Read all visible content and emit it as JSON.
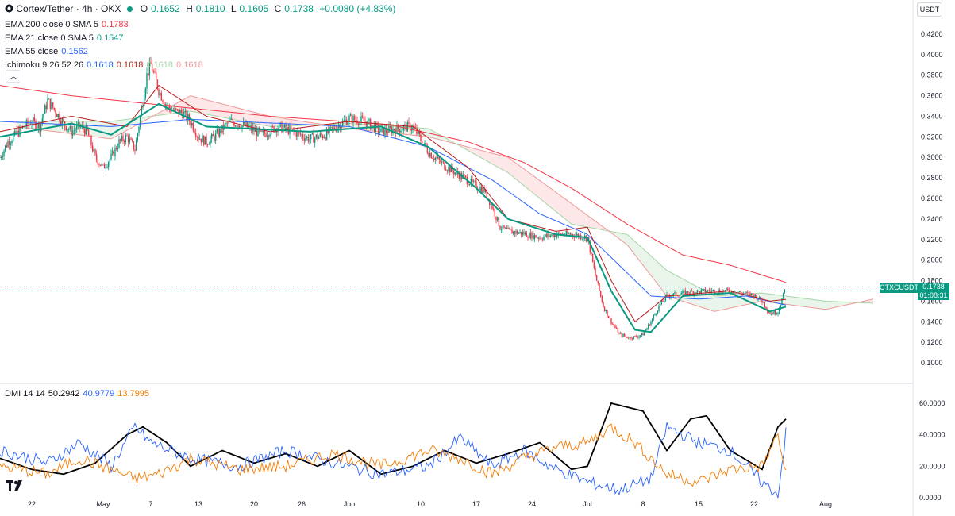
{
  "header": {
    "symbol": "Cortex/Tether · 4h · OKX",
    "open_label": "O",
    "open": "0.1652",
    "high_label": "H",
    "high": "0.1810",
    "low_label": "L",
    "low": "0.1605",
    "close_label": "C",
    "close": "0.1738",
    "change": "+0.0080 (+4.83%)"
  },
  "indicators": {
    "ema200": {
      "label": "EMA 200 close 0 SMA 5",
      "value": "0.1783",
      "color": "#f23645"
    },
    "ema21": {
      "label": "EMA 21 close 0 SMA 5",
      "value": "0.1547",
      "color": "#089981"
    },
    "ema55": {
      "label": "EMA 55 close",
      "value": "0.1562",
      "color": "#2962ff"
    },
    "ichimoku": {
      "label": "Ichimoku 9 26 52 26",
      "v1": "0.1618",
      "v2": "0.1618",
      "v3": "0.1618",
      "v4": "0.1618",
      "c1": "#2962ff",
      "c2": "#b71c1c",
      "c3": "#a5d6a7",
      "c4": "#ef9a9a"
    },
    "dmi": {
      "label": "DMI 14 14",
      "adx": "50.2942",
      "plus": "40.9779",
      "minus": "13.7995",
      "adx_color": "#000000",
      "plus_color": "#2962ff",
      "minus_color": "#f57c00"
    }
  },
  "currency_button": "USDT",
  "price_tag": {
    "symbol": "CTXCUSDT",
    "price": "0.1738",
    "countdown": "01:08:31"
  },
  "icons": {
    "collapse": "chevron-up-icon",
    "logo": "tradingview-logo-icon"
  },
  "chart_data": [
    {
      "type": "candlestick",
      "title": "Cortex/Tether · 4h · OKX",
      "ylim": [
        0.09,
        0.43
      ],
      "yticks": [
        0.42,
        0.4,
        0.38,
        0.36,
        0.34,
        0.32,
        0.3,
        0.28,
        0.26,
        0.24,
        0.22,
        0.2,
        0.18,
        0.16,
        0.14,
        0.12,
        0.1
      ],
      "ytick_labels": [
        "0.4200",
        "0.4000",
        "0.3800",
        "0.3600",
        "0.3400",
        "0.3200",
        "0.3000",
        "0.2800",
        "0.2600",
        "0.2400",
        "0.2200",
        "0.2000",
        "0.1800",
        "0.1600",
        "0.1400",
        "0.1200",
        "0.1000"
      ],
      "x_ticks": [
        "22",
        "May",
        "7",
        "13",
        "20",
        "26",
        "Jun",
        "10",
        "17",
        "24",
        "Jul",
        "8",
        "15",
        "22",
        "Aug"
      ],
      "x_tick_days": [
        0,
        9,
        15,
        21,
        28,
        34,
        40,
        49,
        56,
        63,
        70,
        77,
        84,
        91,
        100
      ],
      "x_range_days": [
        -4,
        111
      ],
      "last_price": 0.1738,
      "price_anchors": [
        [
          -4,
          0.3
        ],
        [
          -3,
          0.315
        ],
        [
          -2,
          0.322
        ],
        [
          -1,
          0.33
        ],
        [
          0,
          0.335
        ],
        [
          1,
          0.33
        ],
        [
          2,
          0.355
        ],
        [
          3,
          0.345
        ],
        [
          4,
          0.333
        ],
        [
          5,
          0.325
        ],
        [
          6,
          0.33
        ],
        [
          7,
          0.325
        ],
        [
          8,
          0.3
        ],
        [
          9,
          0.29
        ],
        [
          10,
          0.3
        ],
        [
          11,
          0.315
        ],
        [
          12,
          0.32
        ],
        [
          13,
          0.308
        ],
        [
          14,
          0.355
        ],
        [
          14.5,
          0.38
        ],
        [
          15,
          0.39
        ],
        [
          16,
          0.365
        ],
        [
          17,
          0.35
        ],
        [
          18,
          0.345
        ],
        [
          19,
          0.343
        ],
        [
          20,
          0.335
        ],
        [
          21,
          0.32
        ],
        [
          22,
          0.315
        ],
        [
          23,
          0.32
        ],
        [
          25,
          0.335
        ],
        [
          27,
          0.33
        ],
        [
          29,
          0.322
        ],
        [
          31,
          0.33
        ],
        [
          33,
          0.325
        ],
        [
          35,
          0.318
        ],
        [
          37,
          0.322
        ],
        [
          39,
          0.333
        ],
        [
          40,
          0.338
        ],
        [
          42,
          0.335
        ],
        [
          44,
          0.325
        ],
        [
          46,
          0.328
        ],
        [
          48,
          0.33
        ],
        [
          50,
          0.305
        ],
        [
          52,
          0.292
        ],
        [
          54,
          0.282
        ],
        [
          56,
          0.272
        ],
        [
          57,
          0.268
        ],
        [
          58,
          0.252
        ],
        [
          59,
          0.232
        ],
        [
          60,
          0.228
        ],
        [
          62,
          0.226
        ],
        [
          64,
          0.222
        ],
        [
          66,
          0.225
        ],
        [
          68,
          0.225
        ],
        [
          70,
          0.222
        ],
        [
          71,
          0.185
        ],
        [
          72,
          0.155
        ],
        [
          73,
          0.14
        ],
        [
          74,
          0.128
        ],
        [
          75,
          0.125
        ],
        [
          76,
          0.125
        ],
        [
          77,
          0.128
        ],
        [
          78,
          0.14
        ],
        [
          79,
          0.155
        ],
        [
          80,
          0.165
        ],
        [
          82,
          0.168
        ],
        [
          85,
          0.17
        ],
        [
          88,
          0.17
        ],
        [
          91,
          0.166
        ],
        [
          92,
          0.16
        ],
        [
          93,
          0.148
        ],
        [
          94,
          0.15
        ],
        [
          95,
          0.1738
        ]
      ],
      "ema200_anchors": [
        [
          -4,
          0.37
        ],
        [
          5,
          0.36
        ],
        [
          15,
          0.352
        ],
        [
          30,
          0.34
        ],
        [
          45,
          0.332
        ],
        [
          55,
          0.315
        ],
        [
          62,
          0.295
        ],
        [
          68,
          0.27
        ],
        [
          75,
          0.235
        ],
        [
          82,
          0.205
        ],
        [
          88,
          0.195
        ],
        [
          95,
          0.1783
        ]
      ],
      "ema55_anchors": [
        [
          -4,
          0.335
        ],
        [
          10,
          0.33
        ],
        [
          20,
          0.337
        ],
        [
          40,
          0.33
        ],
        [
          50,
          0.31
        ],
        [
          58,
          0.278
        ],
        [
          64,
          0.245
        ],
        [
          70,
          0.225
        ],
        [
          74,
          0.195
        ],
        [
          78,
          0.165
        ],
        [
          84,
          0.162
        ],
        [
          90,
          0.165
        ],
        [
          95,
          0.1562
        ]
      ],
      "ema21_anchors": [
        [
          -4,
          0.32
        ],
        [
          5,
          0.333
        ],
        [
          10,
          0.322
        ],
        [
          16,
          0.352
        ],
        [
          22,
          0.33
        ],
        [
          35,
          0.325
        ],
        [
          44,
          0.33
        ],
        [
          50,
          0.31
        ],
        [
          56,
          0.27
        ],
        [
          60,
          0.24
        ],
        [
          66,
          0.225
        ],
        [
          70,
          0.222
        ],
        [
          73,
          0.17
        ],
        [
          76,
          0.132
        ],
        [
          78,
          0.13
        ],
        [
          82,
          0.165
        ],
        [
          88,
          0.168
        ],
        [
          93,
          0.15
        ],
        [
          95,
          0.1547
        ]
      ],
      "kijun_anchors": [
        [
          -4,
          0.325
        ],
        [
          5,
          0.34
        ],
        [
          12,
          0.33
        ],
        [
          16,
          0.37
        ],
        [
          22,
          0.34
        ],
        [
          30,
          0.325
        ],
        [
          40,
          0.335
        ],
        [
          48,
          0.33
        ],
        [
          55,
          0.29
        ],
        [
          60,
          0.24
        ],
        [
          66,
          0.228
        ],
        [
          70,
          0.232
        ],
        [
          73,
          0.18
        ],
        [
          76,
          0.14
        ],
        [
          80,
          0.165
        ],
        [
          88,
          0.17
        ],
        [
          93,
          0.16
        ],
        [
          95,
          0.1618
        ]
      ],
      "cloud_a_anchors": [
        [
          -2,
          0.335
        ],
        [
          10,
          0.335
        ],
        [
          20,
          0.345
        ],
        [
          30,
          0.33
        ],
        [
          40,
          0.333
        ],
        [
          50,
          0.328
        ],
        [
          60,
          0.285
        ],
        [
          68,
          0.235
        ],
        [
          75,
          0.225
        ],
        [
          80,
          0.19
        ],
        [
          86,
          0.165
        ],
        [
          92,
          0.168
        ],
        [
          100,
          0.16
        ],
        [
          106,
          0.158
        ]
      ],
      "cloud_b_anchors": [
        [
          -2,
          0.33
        ],
        [
          10,
          0.318
        ],
        [
          20,
          0.36
        ],
        [
          30,
          0.34
        ],
        [
          40,
          0.328
        ],
        [
          50,
          0.32
        ],
        [
          60,
          0.3
        ],
        [
          68,
          0.255
        ],
        [
          75,
          0.215
        ],
        [
          80,
          0.165
        ],
        [
          86,
          0.15
        ],
        [
          92,
          0.16
        ],
        [
          100,
          0.152
        ],
        [
          106,
          0.162
        ]
      ]
    },
    {
      "type": "line",
      "title": "DMI 14 14",
      "ylim": [
        -4,
        64
      ],
      "yticks": [
        0,
        20,
        40,
        60
      ],
      "ytick_labels": [
        "0.0000",
        "20.0000",
        "40.0000",
        "60.0000"
      ],
      "series": [
        {
          "name": "ADX",
          "value": 50.2942,
          "anchors": [
            [
              -4,
              25
            ],
            [
              0,
              18
            ],
            [
              4,
              15
            ],
            [
              8,
              22
            ],
            [
              12,
              40
            ],
            [
              14,
              45
            ],
            [
              17,
              35
            ],
            [
              20,
              20
            ],
            [
              24,
              30
            ],
            [
              28,
              22
            ],
            [
              32,
              28
            ],
            [
              36,
              20
            ],
            [
              40,
              30
            ],
            [
              44,
              15
            ],
            [
              48,
              20
            ],
            [
              52,
              30
            ],
            [
              56,
              22
            ],
            [
              60,
              28
            ],
            [
              64,
              35
            ],
            [
              68,
              18
            ],
            [
              70,
              20
            ],
            [
              73,
              60
            ],
            [
              77,
              55
            ],
            [
              80,
              30
            ],
            [
              83,
              50
            ],
            [
              85,
              52
            ],
            [
              88,
              30
            ],
            [
              92,
              18
            ],
            [
              94,
              45
            ],
            [
              95,
              50
            ]
          ]
        },
        {
          "name": "+DI",
          "value": 40.9779,
          "anchors": [
            [
              -4,
              30
            ],
            [
              2,
              22
            ],
            [
              6,
              35
            ],
            [
              10,
              20
            ],
            [
              13,
              45
            ],
            [
              15,
              35
            ],
            [
              20,
              25
            ],
            [
              26,
              20
            ],
            [
              32,
              30
            ],
            [
              38,
              22
            ],
            [
              44,
              15
            ],
            [
              50,
              20
            ],
            [
              54,
              38
            ],
            [
              58,
              20
            ],
            [
              62,
              30
            ],
            [
              66,
              18
            ],
            [
              70,
              10
            ],
            [
              74,
              5
            ],
            [
              78,
              12
            ],
            [
              80,
              45
            ],
            [
              84,
              35
            ],
            [
              88,
              30
            ],
            [
              92,
              10
            ],
            [
              94,
              2
            ],
            [
              95,
              41
            ]
          ]
        },
        {
          "name": "-DI",
          "value": 13.7995,
          "anchors": [
            [
              -4,
              20
            ],
            [
              2,
              15
            ],
            [
              6,
              25
            ],
            [
              10,
              18
            ],
            [
              13,
              12
            ],
            [
              16,
              15
            ],
            [
              20,
              25
            ],
            [
              26,
              18
            ],
            [
              32,
              20
            ],
            [
              38,
              28
            ],
            [
              44,
              20
            ],
            [
              50,
              30
            ],
            [
              54,
              25
            ],
            [
              58,
              15
            ],
            [
              62,
              25
            ],
            [
              66,
              32
            ],
            [
              70,
              35
            ],
            [
              73,
              45
            ],
            [
              76,
              35
            ],
            [
              80,
              15
            ],
            [
              84,
              10
            ],
            [
              88,
              18
            ],
            [
              92,
              20
            ],
            [
              94,
              40
            ],
            [
              95,
              14
            ]
          ]
        }
      ]
    }
  ]
}
